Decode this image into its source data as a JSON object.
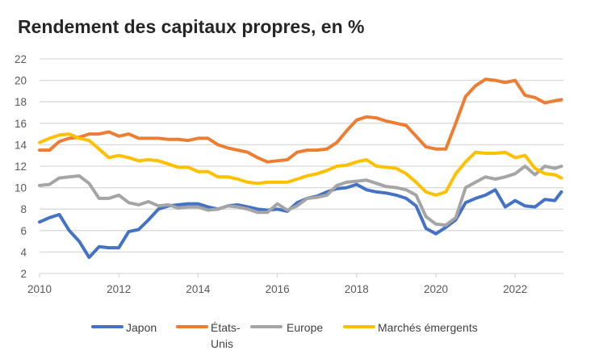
{
  "chart_data": {
    "type": "line",
    "title": "Rendement des capitaux propres, en %",
    "xlabel": "",
    "ylabel": "",
    "ylim": [
      2,
      22
    ],
    "yticks": [
      2,
      4,
      6,
      8,
      10,
      12,
      14,
      16,
      18,
      20,
      22
    ],
    "xticks": [
      "2010",
      "2012",
      "2014",
      "2016",
      "2018",
      "2020",
      "2022"
    ],
    "grid": "horizontal",
    "legend_position": "bottom",
    "x": [
      "2010-01",
      "2010-04",
      "2010-07",
      "2010-10",
      "2011-01",
      "2011-04",
      "2011-07",
      "2011-10",
      "2012-01",
      "2012-04",
      "2012-07",
      "2012-10",
      "2013-01",
      "2013-04",
      "2013-07",
      "2013-10",
      "2014-01",
      "2014-04",
      "2014-07",
      "2014-10",
      "2015-01",
      "2015-04",
      "2015-07",
      "2015-10",
      "2016-01",
      "2016-04",
      "2016-07",
      "2016-10",
      "2017-01",
      "2017-04",
      "2017-07",
      "2017-10",
      "2018-01",
      "2018-04",
      "2018-07",
      "2018-10",
      "2019-01",
      "2019-04",
      "2019-07",
      "2019-10",
      "2020-01",
      "2020-04",
      "2020-07",
      "2020-10",
      "2021-01",
      "2021-04",
      "2021-07",
      "2021-10",
      "2022-01",
      "2022-04",
      "2022-07",
      "2022-10",
      "2023-01",
      "2023-03"
    ],
    "series": [
      {
        "name": "Japon",
        "color": "#4472C4",
        "values": [
          6.8,
          7.2,
          7.5,
          6.0,
          5.0,
          3.5,
          4.5,
          4.4,
          4.4,
          5.9,
          6.1,
          7.0,
          8.0,
          8.3,
          8.4,
          8.5,
          8.5,
          8.2,
          8.0,
          8.3,
          8.4,
          8.2,
          8.0,
          7.9,
          8.0,
          7.8,
          8.6,
          9.0,
          9.2,
          9.6,
          9.9,
          10.0,
          10.3,
          9.8,
          9.6,
          9.5,
          9.3,
          9.0,
          8.3,
          6.2,
          5.7,
          6.3,
          7.0,
          8.6,
          9.0,
          9.3,
          9.8,
          8.2,
          8.8,
          8.3,
          8.2,
          8.9,
          8.8,
          9.6
        ]
      },
      {
        "name": "États-Unis",
        "color": "#ED7D31",
        "values": [
          13.5,
          13.5,
          14.3,
          14.6,
          14.7,
          15.0,
          15.0,
          15.2,
          14.8,
          15.0,
          14.6,
          14.6,
          14.6,
          14.5,
          14.5,
          14.4,
          14.6,
          14.6,
          14.0,
          13.7,
          13.5,
          13.3,
          12.8,
          12.4,
          12.5,
          12.6,
          13.3,
          13.5,
          13.5,
          13.6,
          14.2,
          15.3,
          16.3,
          16.6,
          16.5,
          16.2,
          16.0,
          15.8,
          14.8,
          13.8,
          13.6,
          13.6,
          16.0,
          18.5,
          19.5,
          20.1,
          20.0,
          19.8,
          20.0,
          18.6,
          18.4,
          17.9,
          18.1,
          18.2
        ]
      },
      {
        "name": "Europe",
        "color": "#A5A5A5",
        "values": [
          10.2,
          10.3,
          10.9,
          11.0,
          11.1,
          10.4,
          9.0,
          9.0,
          9.3,
          8.6,
          8.4,
          8.7,
          8.3,
          8.4,
          8.1,
          8.2,
          8.2,
          7.9,
          8.0,
          8.3,
          8.2,
          8.0,
          7.7,
          7.7,
          8.5,
          7.9,
          8.3,
          9.0,
          9.1,
          9.3,
          10.2,
          10.5,
          10.6,
          10.7,
          10.4,
          10.1,
          10.0,
          9.8,
          9.3,
          7.3,
          6.6,
          6.5,
          7.2,
          10.0,
          10.5,
          11.0,
          10.8,
          11.0,
          11.3,
          12.0,
          11.2,
          12.0,
          11.8,
          12.0
        ]
      },
      {
        "name": "Marchés émergents",
        "color": "#FFC000",
        "values": [
          14.2,
          14.6,
          14.9,
          15.0,
          14.6,
          14.4,
          13.6,
          12.8,
          13.0,
          12.8,
          12.5,
          12.6,
          12.5,
          12.2,
          11.9,
          11.9,
          11.5,
          11.5,
          11.0,
          11.0,
          10.8,
          10.5,
          10.4,
          10.5,
          10.5,
          10.5,
          10.8,
          11.1,
          11.3,
          11.6,
          12.0,
          12.1,
          12.4,
          12.6,
          12.0,
          11.9,
          11.8,
          11.3,
          10.5,
          9.6,
          9.3,
          9.6,
          11.3,
          12.4,
          13.3,
          13.2,
          13.2,
          13.3,
          12.8,
          13.0,
          11.8,
          11.3,
          11.2,
          10.9
        ]
      }
    ]
  }
}
